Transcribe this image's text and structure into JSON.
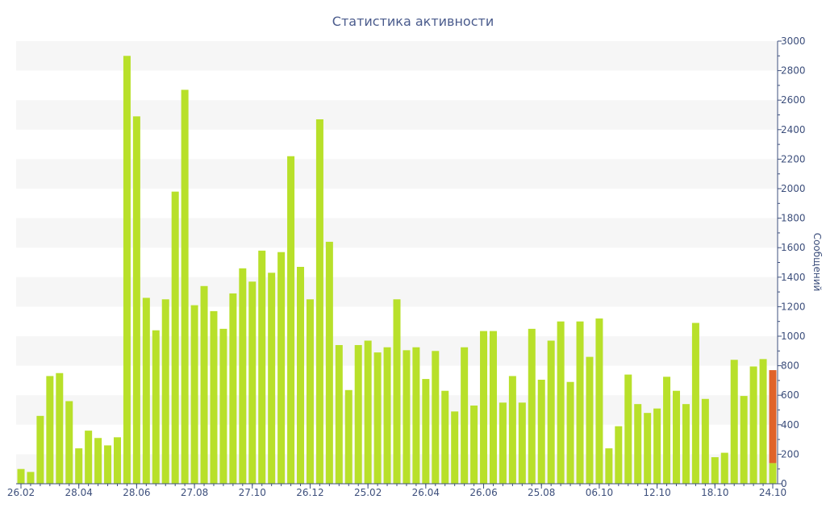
{
  "chart_data": {
    "type": "bar",
    "title": "Статистика активности",
    "ylabel": "Сообщений",
    "xlabel": "",
    "y_axis_position": "right",
    "ylim": [
      0,
      3000
    ],
    "yticks": [
      0,
      200,
      400,
      600,
      800,
      1000,
      1200,
      1400,
      1600,
      1800,
      2000,
      2200,
      2400,
      2600,
      2800,
      3000
    ],
    "grid": "alternating horizontal bands",
    "x_tick_labels": [
      {
        "index": 0,
        "label": "26.02"
      },
      {
        "index": 6,
        "label": "28.04"
      },
      {
        "index": 12,
        "label": "28.06"
      },
      {
        "index": 18,
        "label": "27.08"
      },
      {
        "index": 24,
        "label": "27.10"
      },
      {
        "index": 30,
        "label": "26.12"
      },
      {
        "index": 36,
        "label": "25.02"
      },
      {
        "index": 42,
        "label": "26.04"
      },
      {
        "index": 48,
        "label": "26.06"
      },
      {
        "index": 54,
        "label": "25.08"
      },
      {
        "index": 60,
        "label": "06.10"
      },
      {
        "index": 66,
        "label": "12.10"
      },
      {
        "index": 72,
        "label": "18.10"
      },
      {
        "index": 78,
        "label": "24.10"
      }
    ],
    "series": [
      {
        "values": [
          100,
          80,
          460,
          730,
          750,
          560,
          240,
          360,
          310,
          260,
          315,
          2900,
          2490,
          1260,
          1040,
          1250,
          1980,
          2670,
          1210,
          1340,
          1170,
          1050,
          1290,
          1460,
          1370,
          1580,
          1430,
          1570,
          2220,
          1470,
          1250,
          2470,
          1640,
          940,
          635,
          940,
          970,
          890,
          925,
          1250,
          905,
          925,
          710,
          900,
          630,
          490,
          925,
          530,
          1035,
          1035,
          550,
          730,
          550,
          1050,
          705,
          970,
          1100,
          690,
          1100,
          860,
          1120,
          240,
          390,
          740,
          540,
          480,
          510,
          725,
          630,
          540,
          1090,
          575,
          180,
          210,
          840,
          595,
          795,
          845,
          140
        ],
        "highlight_top": [
          null,
          null,
          null,
          null,
          null,
          null,
          null,
          null,
          null,
          null,
          null,
          null,
          null,
          null,
          null,
          null,
          null,
          null,
          null,
          null,
          null,
          null,
          null,
          null,
          null,
          null,
          null,
          null,
          null,
          null,
          null,
          null,
          null,
          null,
          null,
          null,
          null,
          null,
          null,
          null,
          null,
          null,
          null,
          null,
          null,
          null,
          null,
          null,
          null,
          null,
          null,
          null,
          null,
          null,
          null,
          null,
          null,
          null,
          null,
          null,
          null,
          null,
          null,
          null,
          null,
          null,
          null,
          null,
          null,
          null,
          null,
          null,
          null,
          null,
          null,
          null,
          null,
          null,
          770
        ]
      }
    ],
    "colors": {
      "bar": "#b8e02a",
      "bar_highlight": "#e0632a",
      "band": "#f6f6f6",
      "axis": "#3d4f7c",
      "title": "#4a5b8c"
    }
  }
}
